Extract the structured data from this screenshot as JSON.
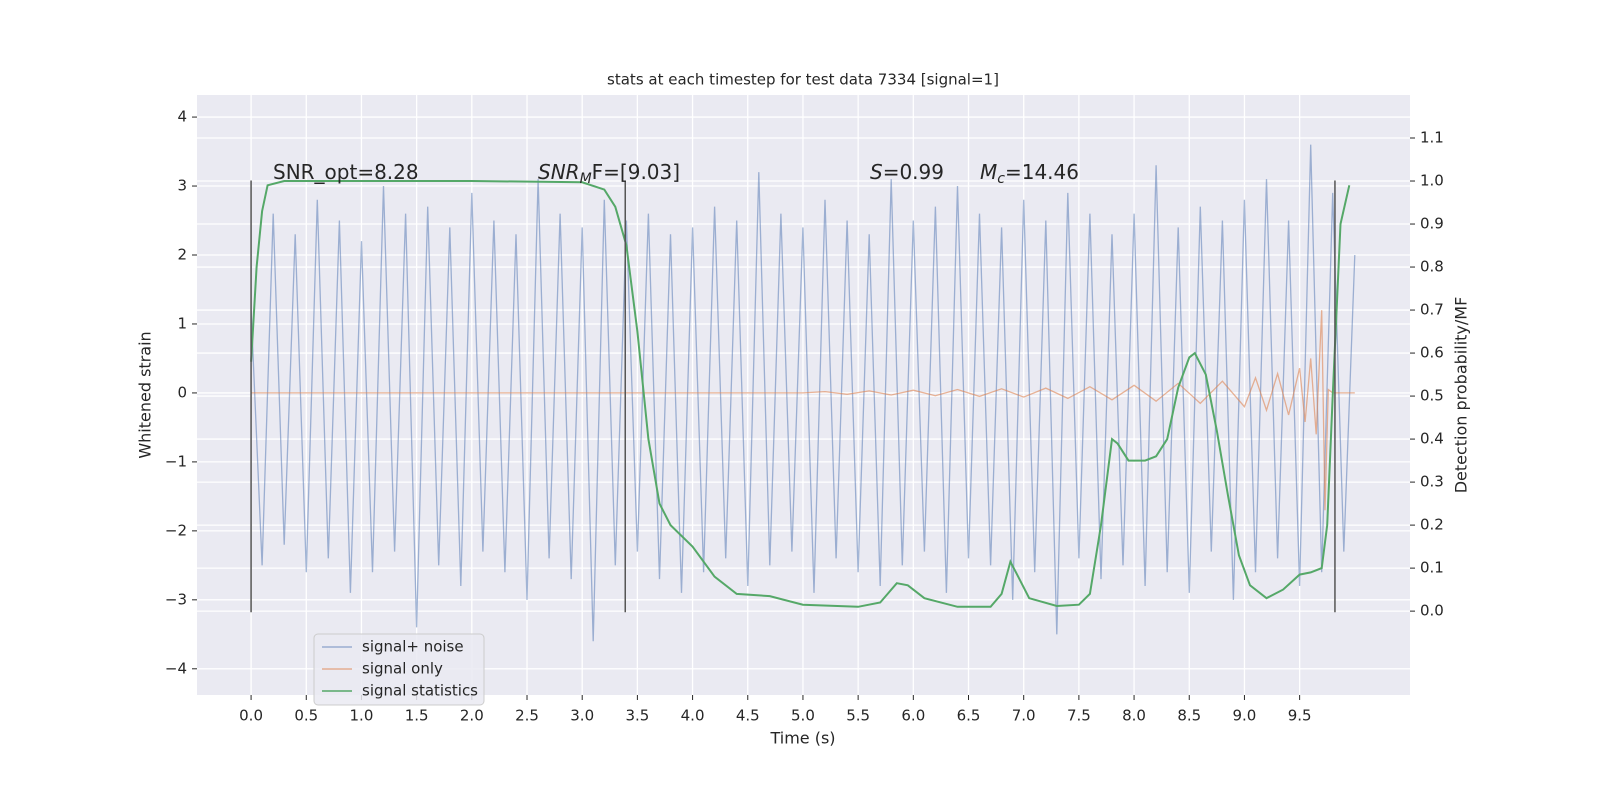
{
  "chart_data": {
    "type": "line",
    "title": "stats at each timestep for test data 7334 [signal=1]",
    "x_label": "Time (s)",
    "y_label": "Whitened strain",
    "y2_label": "Detection probability/MF",
    "xlim": [
      -0.49,
      10.5
    ],
    "ylim": [
      -4.38,
      4.32
    ],
    "y2lim": [
      -0.195,
      1.2
    ],
    "xticks": [
      {
        "value": 0,
        "label": "0.0"
      },
      0.5,
      {
        "value": 1,
        "label": "1.0"
      },
      1.5,
      {
        "value": 2,
        "label": "2.0"
      },
      2.5,
      {
        "value": 3,
        "label": "3.0"
      },
      3.5,
      {
        "value": 4,
        "label": "4.0"
      },
      4.5,
      {
        "value": 5,
        "label": "5.0"
      },
      5.5,
      {
        "value": 6,
        "label": "6.0"
      },
      6.5,
      {
        "value": 7,
        "label": "7.0"
      },
      7.5,
      {
        "value": 8,
        "label": "8.0"
      },
      8.5,
      {
        "value": 9,
        "label": "9.0"
      },
      9.5
    ],
    "yticks": [
      {
        "value": -4,
        "label": "−4"
      },
      {
        "value": -3,
        "label": "−3"
      },
      {
        "value": -2,
        "label": "−2"
      },
      {
        "value": -1,
        "label": "−1"
      },
      0,
      1,
      2,
      3,
      4
    ],
    "y2ticks": [
      {
        "value": 0,
        "label": "0.0"
      },
      0.1,
      0.2,
      0.3,
      0.4,
      0.5,
      0.6,
      0.7,
      0.8,
      0.9,
      {
        "value": 1,
        "label": "1.0"
      },
      1.1
    ],
    "grid": true,
    "legend": "lower left",
    "annotations": [
      {
        "text": "SNR_opt=8.28"
      },
      {
        "symbol": "SNR",
        "subscript": "M",
        "text": "F=[9.03]"
      },
      {
        "symbol": "S",
        "text": "=0.99"
      },
      {
        "symbol": "M",
        "subscript": "c",
        "text": "=14.46"
      }
    ],
    "vlines": {
      "color": "#555555",
      "x": [
        0,
        3.39,
        9.82
      ],
      "ymin": -3.18,
      "ymax": 3.08
    },
    "series": [
      {
        "name": "signal+ noise",
        "color": "#4c72b0",
        "x": [
          0.0,
          0.1,
          0.2,
          0.3,
          0.4,
          0.5,
          0.6,
          0.7,
          0.8,
          0.9,
          1.0,
          1.1,
          1.2,
          1.3,
          1.4,
          1.5,
          1.6,
          1.7,
          1.8,
          1.9,
          2.0,
          2.1,
          2.2,
          2.3,
          2.4,
          2.5,
          2.6,
          2.7,
          2.8,
          2.9,
          3.0,
          3.1,
          3.2,
          3.3,
          3.4,
          3.5,
          3.6,
          3.7,
          3.8,
          3.9,
          4.0,
          4.1,
          4.2,
          4.3,
          4.4,
          4.5,
          4.6,
          4.7,
          4.8,
          4.9,
          5.0,
          5.1,
          5.2,
          5.3,
          5.4,
          5.5,
          5.6,
          5.7,
          5.8,
          5.9,
          6.0,
          6.1,
          6.2,
          6.3,
          6.4,
          6.5,
          6.6,
          6.7,
          6.8,
          6.9,
          7.0,
          7.1,
          7.2,
          7.3,
          7.4,
          7.5,
          7.6,
          7.7,
          7.8,
          7.9,
          8.0,
          8.1,
          8.2,
          8.3,
          8.4,
          8.5,
          8.6,
          8.7,
          8.8,
          8.9,
          9.0,
          9.1,
          9.2,
          9.3,
          9.4,
          9.5,
          9.6,
          9.7,
          9.8,
          9.9,
          10.0
        ],
        "values": [
          1.2,
          -2.5,
          2.6,
          -2.2,
          2.3,
          -2.6,
          2.8,
          -2.4,
          2.5,
          -2.9,
          2.2,
          -2.6,
          3.0,
          -2.3,
          2.6,
          -3.4,
          2.7,
          -2.5,
          2.4,
          -2.8,
          2.9,
          -2.3,
          2.5,
          -2.6,
          2.3,
          -3.0,
          3.1,
          -2.4,
          2.6,
          -2.7,
          2.4,
          -3.6,
          2.8,
          -2.5,
          2.5,
          -2.3,
          2.6,
          -2.7,
          2.3,
          -2.9,
          2.4,
          -2.6,
          2.7,
          -2.4,
          2.5,
          -2.8,
          3.2,
          -2.5,
          2.6,
          -2.3,
          2.4,
          -2.9,
          2.8,
          -2.4,
          2.5,
          -2.6,
          2.3,
          -2.8,
          3.1,
          -2.5,
          2.5,
          -2.3,
          2.7,
          -2.9,
          3.0,
          -2.4,
          2.6,
          -2.5,
          2.4,
          -3.0,
          2.8,
          -2.6,
          2.5,
          -3.5,
          2.9,
          -2.4,
          2.6,
          -2.7,
          2.3,
          -2.5,
          2.6,
          -2.8,
          3.3,
          -2.6,
          2.4,
          -2.9,
          2.7,
          -2.3,
          2.5,
          -3.0,
          2.8,
          -2.6,
          3.1,
          -2.4,
          2.5,
          -2.8,
          3.6,
          -2.6,
          2.9,
          -2.3,
          2.0
        ]
      },
      {
        "name": "signal only",
        "color": "#dd8452",
        "x": [
          0,
          5.0,
          5.2,
          5.4,
          5.6,
          5.8,
          6.0,
          6.2,
          6.4,
          6.6,
          6.8,
          7.0,
          7.2,
          7.4,
          7.6,
          7.8,
          8.0,
          8.2,
          8.4,
          8.6,
          8.8,
          9.0,
          9.1,
          9.2,
          9.3,
          9.4,
          9.5,
          9.55,
          9.6,
          9.65,
          9.7,
          9.73,
          9.76,
          9.8,
          10.0
        ],
        "values": [
          0,
          0,
          0.02,
          -0.02,
          0.03,
          -0.03,
          0.04,
          -0.04,
          0.05,
          -0.05,
          0.06,
          -0.06,
          0.07,
          -0.08,
          0.09,
          -0.1,
          0.11,
          -0.12,
          0.14,
          -0.15,
          0.17,
          -0.2,
          0.22,
          -0.25,
          0.28,
          -0.32,
          0.36,
          -0.42,
          0.5,
          -0.6,
          1.2,
          -1.7,
          0.05,
          0,
          0
        ]
      },
      {
        "name": "signal statistics",
        "color": "#55a868",
        "axis": "y2",
        "x": [
          0.0,
          0.05,
          0.1,
          0.15,
          0.3,
          1.0,
          2.0,
          3.0,
          3.2,
          3.3,
          3.4,
          3.5,
          3.6,
          3.7,
          3.8,
          4.0,
          4.2,
          4.4,
          4.7,
          5.0,
          5.5,
          5.7,
          5.85,
          5.95,
          6.1,
          6.4,
          6.7,
          6.8,
          6.88,
          6.95,
          7.05,
          7.3,
          7.5,
          7.6,
          7.7,
          7.8,
          7.85,
          7.95,
          8.1,
          8.2,
          8.3,
          8.4,
          8.5,
          8.55,
          8.65,
          8.75,
          8.85,
          8.95,
          9.05,
          9.2,
          9.35,
          9.5,
          9.6,
          9.7,
          9.75,
          9.8,
          9.87,
          9.95
        ],
        "values": [
          0.58,
          0.8,
          0.93,
          0.99,
          1.0,
          1.0,
          1.0,
          0.997,
          0.98,
          0.94,
          0.85,
          0.65,
          0.4,
          0.25,
          0.2,
          0.15,
          0.08,
          0.04,
          0.035,
          0.015,
          0.01,
          0.02,
          0.065,
          0.06,
          0.03,
          0.01,
          0.01,
          0.04,
          0.115,
          0.08,
          0.03,
          0.012,
          0.015,
          0.04,
          0.2,
          0.4,
          0.39,
          0.35,
          0.35,
          0.36,
          0.4,
          0.52,
          0.59,
          0.6,
          0.55,
          0.42,
          0.27,
          0.13,
          0.06,
          0.03,
          0.05,
          0.085,
          0.09,
          0.1,
          0.2,
          0.5,
          0.9,
          0.99
        ]
      }
    ]
  }
}
